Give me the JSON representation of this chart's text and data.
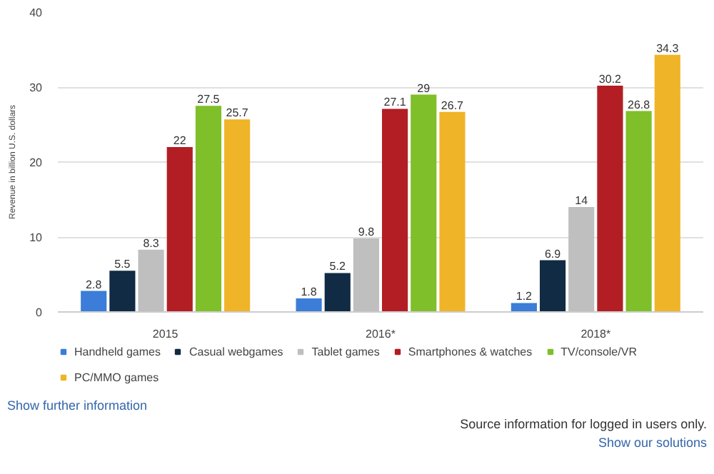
{
  "chart_data": {
    "type": "bar",
    "ylabel": "Revenue in billion U.S. dollars",
    "categories": [
      "2015",
      "2016*",
      "2018*"
    ],
    "series": [
      {
        "name": "Handheld games",
        "color": "#3b7dd8",
        "values": [
          2.8,
          1.8,
          1.2
        ]
      },
      {
        "name": "Casual webgames",
        "color": "#112b45",
        "values": [
          5.5,
          5.2,
          6.9
        ]
      },
      {
        "name": "Tablet games",
        "color": "#bfbfbf",
        "values": [
          8.3,
          9.8,
          14
        ]
      },
      {
        "name": "Smartphones & watches",
        "color": "#b21e23",
        "values": [
          22,
          27.1,
          30.2
        ]
      },
      {
        "name": "TV/console/VR",
        "color": "#7fbf2a",
        "values": [
          27.5,
          29,
          26.8
        ]
      },
      {
        "name": "PC/MMO games",
        "color": "#f0b428",
        "values": [
          25.7,
          26.7,
          34.3
        ]
      }
    ],
    "ylim": [
      0,
      40
    ],
    "yticks": [
      0,
      10,
      20,
      30,
      40
    ],
    "grid": "y",
    "legend": "bottom",
    "data_labels": true,
    "annotations": [
      "Show further information",
      "Source information for logged in users only.",
      "Show our solutions"
    ]
  }
}
